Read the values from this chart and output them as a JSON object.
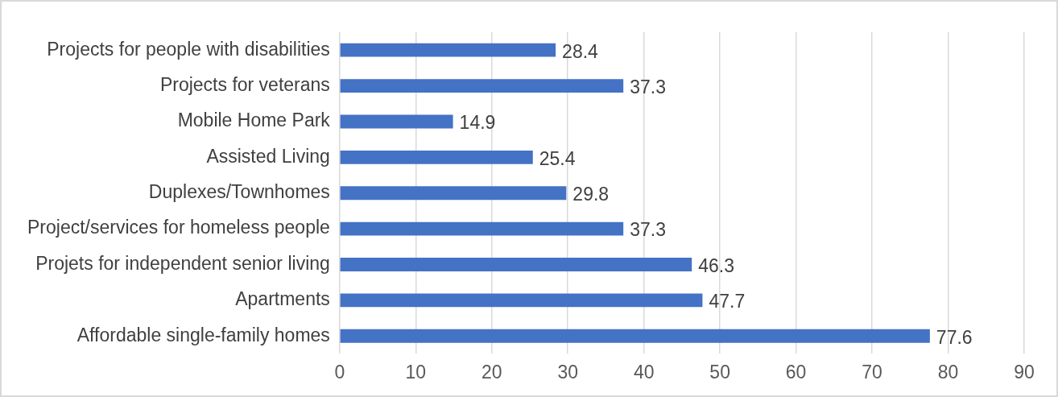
{
  "chart_data": {
    "type": "bar",
    "orientation": "horizontal",
    "categories": [
      "Projects for people with disabilities",
      "Projects for veterans",
      "Mobile Home Park",
      "Assisted Living",
      "Duplexes/Townhomes",
      "Project/services for homeless people",
      "Projets for independent senior living",
      "Apartments",
      "Affordable single-family homes"
    ],
    "values": [
      28.4,
      37.3,
      14.9,
      25.4,
      29.8,
      37.3,
      46.3,
      47.7,
      77.6
    ],
    "color": "#4472c4",
    "xlim": [
      0,
      90
    ],
    "xticks": [
      0,
      10,
      20,
      30,
      40,
      50,
      60,
      70,
      80,
      90
    ],
    "grid": "x",
    "data_labels": true
  }
}
